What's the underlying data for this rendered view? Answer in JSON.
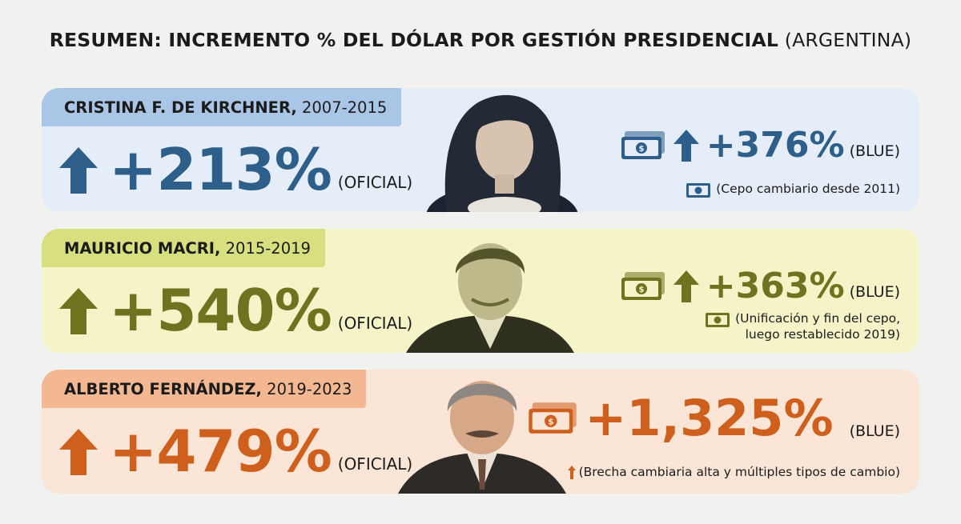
{
  "title": {
    "bold": "RESUMEN: INCREMENTO % DEL DÓLAR POR GESTIÓN PRESIDENCIAL",
    "light": "(ARGENTINA)"
  },
  "colors": {
    "blue_accent": "#2e5f8a",
    "olive_accent": "#6f721f",
    "orange_accent": "#cf5f1d"
  },
  "cards": [
    {
      "name": "CRISTINA F. DE KIRCHNER,",
      "years": "2007-2015",
      "official_value": "+213%",
      "official_tag": "(OFICIAL)",
      "blue_value": "+376%",
      "blue_tag": "(BLUE)",
      "note_lines": [
        "(Cepo cambiario desde 2011)"
      ],
      "icons": [
        "up-arrow-icon",
        "money-bill-icon"
      ]
    },
    {
      "name": "MAURICIO MACRI,",
      "years": "2015-2019",
      "official_value": "+540%",
      "official_tag": "(OFICIAL)",
      "blue_value": "+363%",
      "blue_tag": "(BLUE)",
      "note_lines": [
        "(Unificación y fin del cepo,",
        "luego restablecido 2019)"
      ],
      "icons": [
        "up-arrow-icon",
        "money-bill-icon"
      ]
    },
    {
      "name": "ALBERTO FERNÁNDEZ,",
      "years": "2019-2023",
      "official_value": "+479%",
      "official_tag": "(OFICIAL)",
      "blue_value": "+1,325%",
      "blue_tag": "(BLUE)",
      "note_lines": [
        "(Brecha cambiaria alta y múltiples tipos de cambio)"
      ],
      "icons": [
        "up-arrow-icon",
        "money-bill-icon"
      ]
    }
  ]
}
